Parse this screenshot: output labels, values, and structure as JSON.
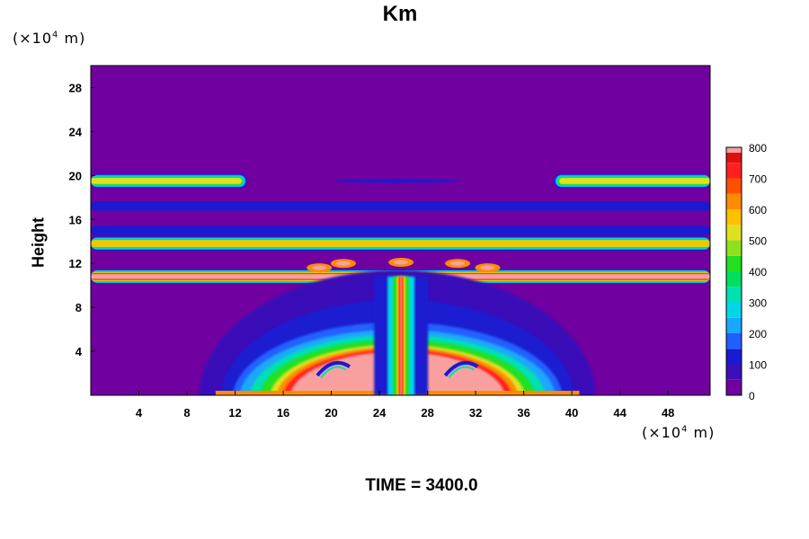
{
  "chart_data": {
    "type": "heatmap",
    "title": "Km",
    "ylabel": "Height",
    "xlabel": "",
    "x_unit": "(×10⁴ m)",
    "y_unit": "(×10⁴ m)",
    "footer": "TIME = 3400.0",
    "xlim": [
      0,
      51.5
    ],
    "ylim": [
      0,
      30
    ],
    "x_ticks": [
      "4",
      "8",
      "12",
      "16",
      "20",
      "24",
      "28",
      "32",
      "36",
      "40",
      "44",
      "48"
    ],
    "y_ticks": [
      "4",
      "8",
      "12",
      "16",
      "20",
      "24",
      "28"
    ],
    "colorbar_ticks": [
      "0",
      "100",
      "200",
      "300",
      "400",
      "500",
      "600",
      "700",
      "800"
    ],
    "colorbar_range": [
      0,
      800
    ],
    "colors": {
      "background": "#7000a0",
      "dark_blue": "#1a1ad0",
      "blue": "#2060ff",
      "cyan": "#00e0e0",
      "green": "#20e020",
      "yellow": "#e0e020",
      "orange": "#ff8c00",
      "red": "#ff2020",
      "pink": "#f8a0a0"
    },
    "features": [
      {
        "name": "band",
        "y": 19.5,
        "x_from": 0,
        "x_to": 13,
        "peak": 500
      },
      {
        "name": "band",
        "y": 19.5,
        "x_from": 38.5,
        "x_to": 51.5,
        "peak": 500
      },
      {
        "name": "band",
        "y": 17.2,
        "x_from": 0,
        "x_to": 51.5,
        "peak": 130
      },
      {
        "name": "band",
        "y": 15.0,
        "x_from": 0,
        "x_to": 51.5,
        "peak": 130
      },
      {
        "name": "band",
        "y": 13.8,
        "x_from": 0,
        "x_to": 51.5,
        "peak": 550
      },
      {
        "name": "band",
        "y": 10.8,
        "x_from": 0,
        "x_to": 51.5,
        "peak": 800
      },
      {
        "name": "core",
        "x": 25.8,
        "y_from": 0,
        "y_to": 10.8,
        "peak": 800
      },
      {
        "name": "surface-dome",
        "x_from": 11.5,
        "x_to": 39.5,
        "y_from": 0,
        "y_to": 4.5,
        "peak": 800
      }
    ]
  }
}
